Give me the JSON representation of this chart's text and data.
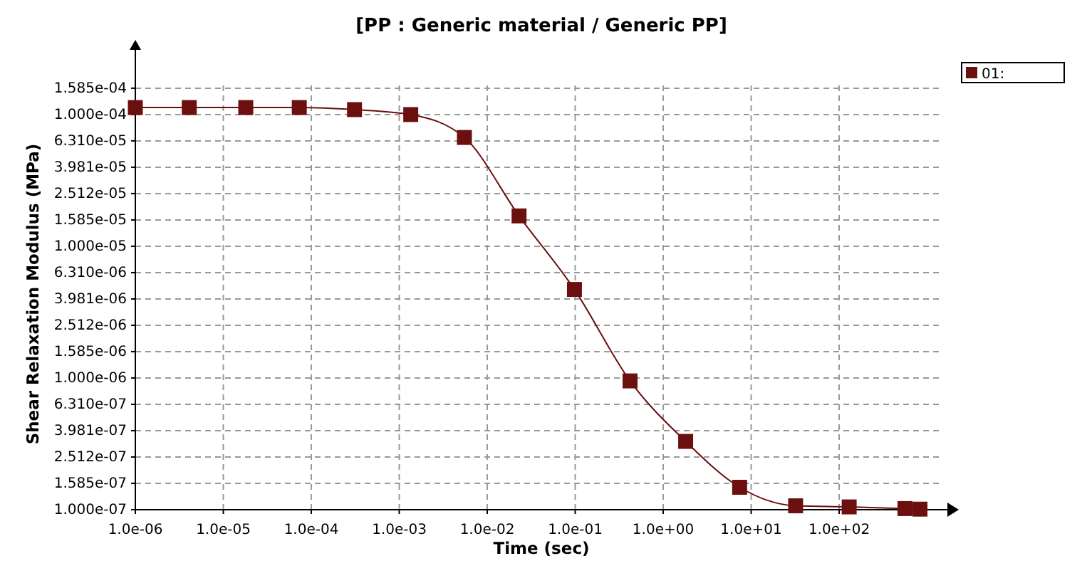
{
  "chart_data": {
    "type": "line",
    "title": "[PP : Generic material / Generic PP]",
    "xlabel": "Time (sec)",
    "ylabel": "Shear Relaxation Modulus (MPa)",
    "log": "xy",
    "grid": true,
    "legend": "top right",
    "marker": "square",
    "line_style": "solid",
    "xlim": [
      1e-06,
      1700
    ],
    "ylim": [
      1e-07,
      0.00031
    ],
    "xticks": [
      {
        "value": 1e-06,
        "label": "1.0e-06"
      },
      {
        "value": 1e-05,
        "label": "1.0e-05"
      },
      {
        "value": 0.0001,
        "label": "1.0e-04"
      },
      {
        "value": 0.001,
        "label": "1.0e-03"
      },
      {
        "value": 0.01,
        "label": "1.0e-02"
      },
      {
        "value": 0.1,
        "label": "1.0e-01"
      },
      {
        "value": 1,
        "label": "1.0e+00"
      },
      {
        "value": 10,
        "label": "1.0e+01"
      },
      {
        "value": 100,
        "label": "1.0e+02"
      }
    ],
    "yticks": [
      {
        "value": 1e-07,
        "label": "1.000e-07"
      },
      {
        "value": 1.585e-07,
        "label": "1.585e-07"
      },
      {
        "value": 2.512e-07,
        "label": "2.512e-07"
      },
      {
        "value": 3.981e-07,
        "label": "3.981e-07"
      },
      {
        "value": 6.31e-07,
        "label": "6.310e-07"
      },
      {
        "value": 1e-06,
        "label": "1.000e-06"
      },
      {
        "value": 1.585e-06,
        "label": "1.585e-06"
      },
      {
        "value": 2.512e-06,
        "label": "2.512e-06"
      },
      {
        "value": 3.981e-06,
        "label": "3.981e-06"
      },
      {
        "value": 6.31e-06,
        "label": "6.310e-06"
      },
      {
        "value": 1e-05,
        "label": "1.000e-05"
      },
      {
        "value": 1.585e-05,
        "label": "1.585e-05"
      },
      {
        "value": 2.512e-05,
        "label": "2.512e-05"
      },
      {
        "value": 3.981e-05,
        "label": "3.981e-05"
      },
      {
        "value": 6.31e-05,
        "label": "6.310e-05"
      },
      {
        "value": 0.0001,
        "label": "1.000e-04"
      },
      {
        "value": 0.0001585,
        "label": "1.585e-04"
      }
    ],
    "x": [
      1e-06,
      4.1e-06,
      1.8e-05,
      7.3e-05,
      0.00031,
      0.00135,
      0.0055,
      0.023,
      0.098,
      0.42,
      1.8,
      7.4,
      32,
      130,
      560,
      830
    ],
    "series": [
      {
        "name": "01:",
        "color": "#6b0f0f",
        "values": [
          0.000113,
          0.000113,
          0.000113,
          0.000113,
          0.000109,
          0.0001,
          6.7e-05,
          1.7e-05,
          4.7e-06,
          9.5e-07,
          3.3e-07,
          1.48e-07,
          1.07e-07,
          1.05e-07,
          1.02e-07,
          1.01e-07
        ]
      }
    ]
  }
}
